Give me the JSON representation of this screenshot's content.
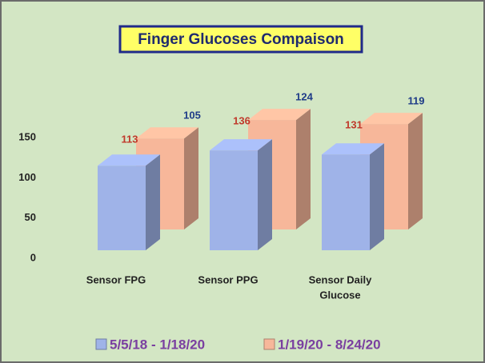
{
  "chart_data": {
    "type": "bar3d",
    "title": "Finger Glucoses Compaison",
    "categories": [
      "Sensor FPG",
      "Sensor PPG",
      [
        "Sensor Daily",
        "Glucose"
      ]
    ],
    "series": [
      {
        "name": "5/5/18 - 1/18/20",
        "color": "#9fb3e8",
        "label_color": "#1f3c88",
        "values": [
          105,
          124,
          119
        ]
      },
      {
        "name": "1/19/20 - 8/24/20",
        "color": "#f7b79a",
        "label_color": "#c0392b",
        "values": [
          113,
          136,
          131
        ]
      }
    ],
    "ylim": [
      0,
      150
    ],
    "yticks": [
      0,
      50,
      100,
      150
    ],
    "legend": "bottom"
  }
}
